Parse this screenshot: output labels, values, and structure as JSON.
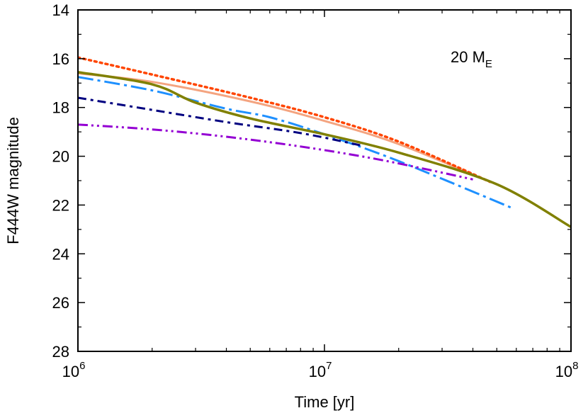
{
  "chart_data": {
    "type": "line",
    "xlabel": "Time [yr]",
    "ylabel": "F444W magnitude",
    "xscale": "log",
    "xlim": [
      1000000,
      100000000
    ],
    "ylim": [
      28,
      14
    ],
    "y_inverted": true,
    "x_ticks": [
      {
        "value": 1000000,
        "base": "10",
        "exp": "6"
      },
      {
        "value": 10000000,
        "base": "10",
        "exp": "7"
      },
      {
        "value": 100000000,
        "base": "10",
        "exp": "8"
      }
    ],
    "y_ticks": [
      "14",
      "16",
      "18",
      "20",
      "22",
      "24",
      "26",
      "28"
    ],
    "annotation": {
      "main": "20 M",
      "sub": "E"
    },
    "grid": false,
    "legend": "none",
    "series": [
      {
        "color": "#f4a480",
        "style": "solid",
        "width": 3,
        "x": [
          1000000,
          2000000,
          5000000,
          10000000,
          20000000,
          47000000
        ],
        "y": [
          16.6,
          16.95,
          17.75,
          18.55,
          19.5,
          21.05
        ]
      },
      {
        "color": "#ff4500",
        "style": "dotted",
        "width": 3.5,
        "x": [
          1000000,
          2000000,
          5000000,
          10000000,
          20000000,
          47000000
        ],
        "y": [
          15.95,
          16.65,
          17.6,
          18.4,
          19.4,
          21.05
        ]
      },
      {
        "color": "#1e90ff",
        "style": "dashdot-long",
        "width": 3,
        "x": [
          1000000,
          2000000,
          4000000,
          6000000,
          10000000,
          20000000,
          57000000
        ],
        "y": [
          16.75,
          17.3,
          18.05,
          18.4,
          19.1,
          20.2,
          22.1
        ]
      },
      {
        "color": "#000080",
        "style": "dashdot",
        "width": 3,
        "x": [
          1000000,
          2000000,
          4000000,
          8000000,
          14000000
        ],
        "y": [
          17.6,
          18.1,
          18.6,
          19.05,
          19.55
        ]
      },
      {
        "color": "#9400d3",
        "style": "dashdotdot",
        "width": 3,
        "x": [
          1000000,
          2000000,
          4000000,
          8000000,
          15000000,
          25000000,
          40000000
        ],
        "y": [
          18.7,
          18.9,
          19.2,
          19.6,
          20.05,
          20.5,
          20.95
        ]
      },
      {
        "color": "#808000",
        "style": "solid",
        "width": 3.5,
        "x": [
          1000000,
          2000000,
          3000000,
          5000000,
          10000000,
          20000000,
          50000000,
          100000000
        ],
        "y": [
          16.55,
          17.05,
          17.8,
          18.45,
          19.1,
          19.85,
          21.15,
          22.9
        ]
      }
    ]
  }
}
